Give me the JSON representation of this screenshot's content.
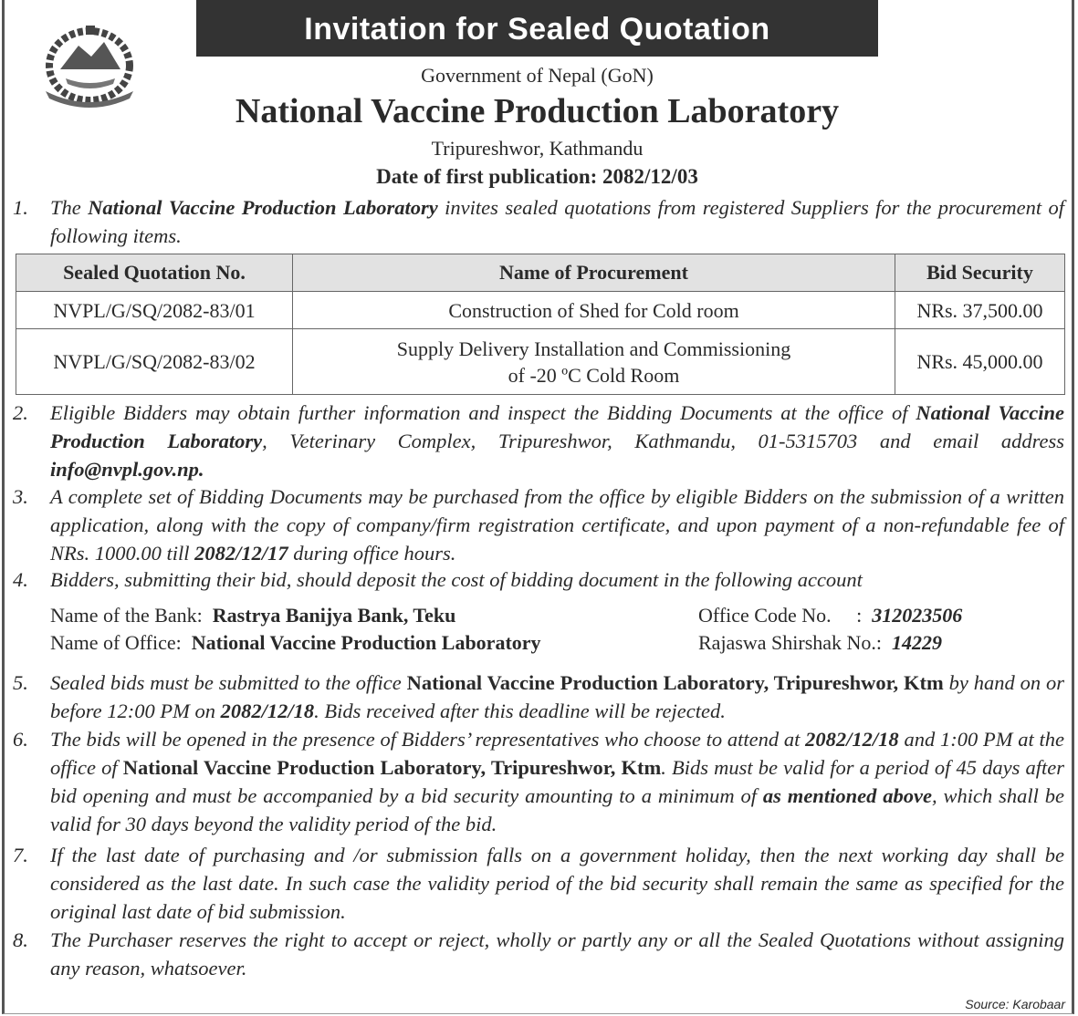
{
  "header": {
    "title": "Invitation for Sealed Quotation",
    "government": "Government of Nepal (GoN)",
    "organization": "National Vaccine Production Laboratory",
    "location": "Tripureshwor, Kathmandu",
    "publication_date": "Date of first publication: 2082/12/03",
    "emblem": "Nepal government emblem"
  },
  "table": {
    "headers": [
      "Sealed Quotation No.",
      "Name of Procurement",
      "Bid Security"
    ],
    "rows": [
      [
        "NVPL/G/SQ/2082-83/01",
        "Construction of Shed for Cold room",
        "NRs. 37,500.00"
      ],
      [
        "NVPL/G/SQ/2082-83/02",
        "Supply Delivery Installation and Commissioning",
        "NRs. 45,000.00"
      ]
    ],
    "row2_line2": "of -20 ºC Cold Room"
  },
  "items": [
    {
      "num": "1.",
      "parts": [
        [
          "n",
          "The "
        ],
        [
          "b",
          "National Vaccine Production Laboratory"
        ],
        [
          "n",
          " invites sealed quotations from registered Suppliers for the procurement of following items."
        ]
      ]
    },
    {
      "num": "2.",
      "parts": [
        [
          "n",
          "Eligible Bidders may obtain further information and inspect the Bidding Documents at the office of "
        ],
        [
          "b",
          "National Vaccine Production Laboratory"
        ],
        [
          "n",
          ", Veterinary Complex, Tripureshwor, Kathmandu, 01-5315703 and email address "
        ],
        [
          "b",
          "info@nvpl.gov.np."
        ]
      ]
    },
    {
      "num": "3.",
      "parts": [
        [
          "n",
          "A complete set of Bidding Documents may be purchased from the office by eligible Bidders on the submission of a written application, along with the copy of company/firm registration certificate, and upon payment of a non-refundable fee of NRs. 1000.00 till "
        ],
        [
          "b",
          "2082/12/17"
        ],
        [
          "n",
          " during office hours."
        ]
      ]
    },
    {
      "num": "4.",
      "parts": [
        [
          "n",
          "Bidders, submitting their bid, should deposit the cost of bidding document in the following account"
        ]
      ]
    },
    {
      "num": "5.",
      "parts": [
        [
          "n",
          "Sealed bids must be submitted to the office "
        ],
        [
          "bu",
          "National Vaccine Production Laboratory, Tripureshwor, Ktm"
        ],
        [
          "n",
          " by hand on or before 12:00 PM on "
        ],
        [
          "b",
          "2082/12/18"
        ],
        [
          "n",
          ". Bids received after this deadline will be rejected."
        ]
      ]
    },
    {
      "num": "6.",
      "parts": [
        [
          "n",
          "The bids will be opened in the presence of Bidders’ representatives who choose to attend at "
        ],
        [
          "b",
          "2082/12/18"
        ],
        [
          "n",
          " and 1:00 PM at the office of "
        ],
        [
          "bu",
          "National Vaccine Production Laboratory, Tripureshwor, Ktm"
        ],
        [
          "n",
          ". Bids must be valid for a period of 45 days after bid opening and must be accompanied by a bid security amounting to a minimum of "
        ],
        [
          "b",
          "as mentioned above"
        ],
        [
          "n",
          ", which shall be valid for 30 days beyond the validity period of the bid."
        ]
      ]
    },
    {
      "num": "7.",
      "parts": [
        [
          "n",
          "If the last date of purchasing and /or submission falls on a government holiday, then the next working day shall be considered as the last date. In such case the validity period of the bid security shall remain the same as specified for the original last date of bid submission."
        ]
      ]
    },
    {
      "num": "8.",
      "parts": [
        [
          "n",
          "The Purchaser reserves the right to accept or reject, wholly or partly any or all the Sealed Quotations without assigning any reason, whatsoever."
        ]
      ]
    }
  ],
  "bank": {
    "bank_label": "Name of the Bank:",
    "bank_value": "Rastrya Banijya Bank, Teku",
    "office_label": "Name of Office:",
    "office_value": "National Vaccine Production Laboratory",
    "code_label": "Office Code No.     :",
    "code_value": "312023506",
    "rajaswa_label": "Rajaswa Shirshak No.:",
    "rajaswa_value": "14229"
  },
  "source": "Source: Karobaar"
}
